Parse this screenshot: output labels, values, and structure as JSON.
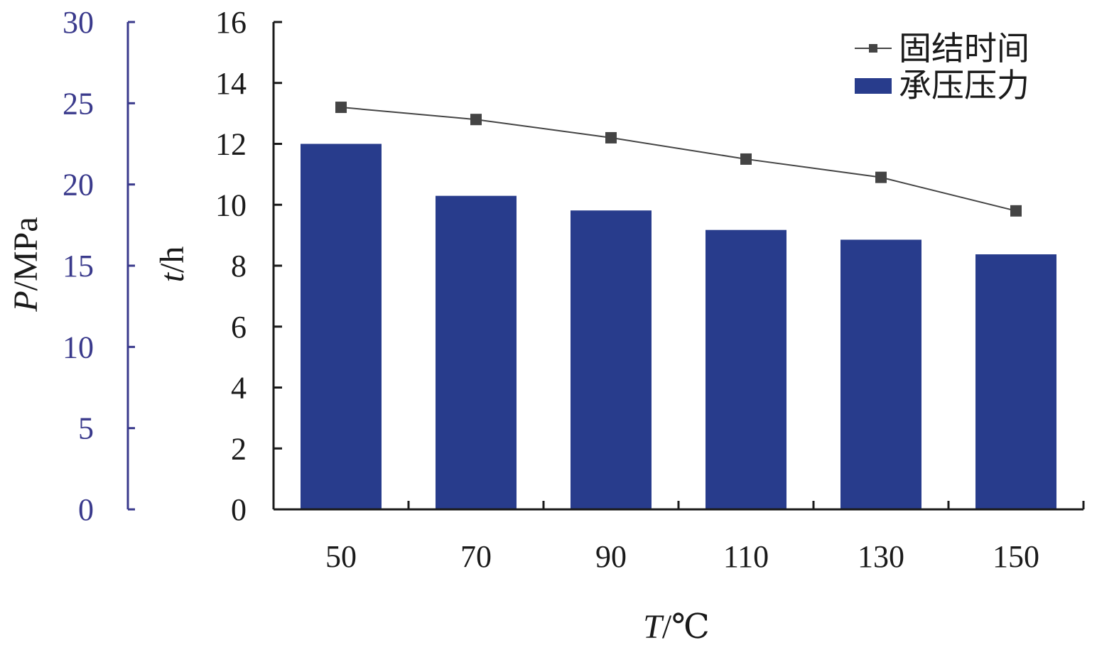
{
  "chart_data": {
    "type": "bar",
    "x_axis": {
      "label_var": "T",
      "label_unit": "/℃",
      "categories": [
        "50",
        "70",
        "90",
        "110",
        "130",
        "150"
      ]
    },
    "t_axis": {
      "label_var": "t",
      "label_unit": "/h",
      "ylim": [
        0,
        16
      ],
      "ticks": [
        "0",
        "2",
        "4",
        "6",
        "8",
        "10",
        "12",
        "14",
        "16"
      ]
    },
    "p_axis": {
      "label_var": "P",
      "label_unit": "/MPa",
      "ylim": [
        0,
        30
      ],
      "ticks": [
        "0",
        "5",
        "10",
        "15",
        "20",
        "25",
        "30"
      ],
      "color": "#3a3a8c"
    },
    "series": [
      {
        "name": "承压压力",
        "kind": "bar",
        "axis": "p",
        "color": "#283c8c",
        "values": [
          22.5,
          19.3,
          18.4,
          17.2,
          16.6,
          15.7
        ]
      },
      {
        "name": "固结时间",
        "kind": "line",
        "axis": "t",
        "color": "#444444",
        "values": [
          13.2,
          12.8,
          12.2,
          11.5,
          10.9,
          9.8
        ]
      }
    ],
    "legend_position": "top-right",
    "grid": false
  }
}
